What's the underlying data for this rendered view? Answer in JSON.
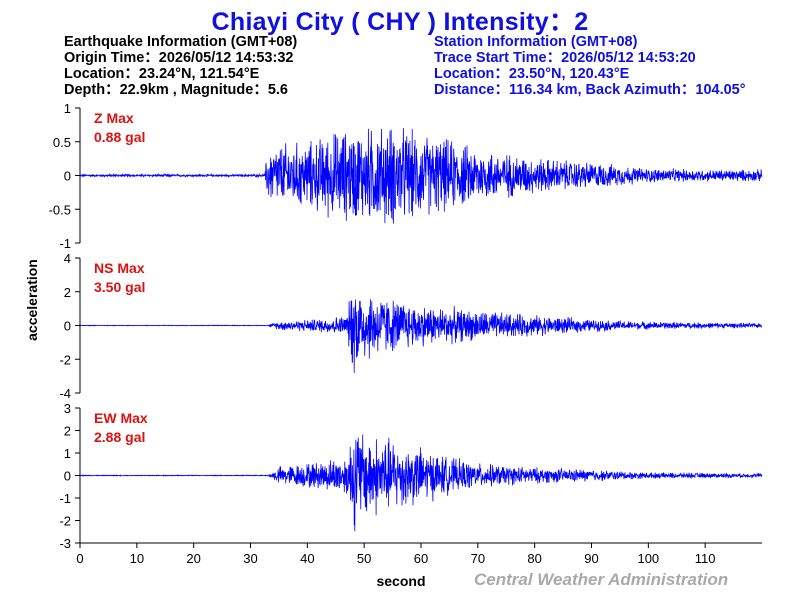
{
  "title": "Chiayi City  ( CHY )  Intensity：2",
  "earthquake": {
    "header": "Earthquake Information  (GMT+08)",
    "origin": "Origin Time：2026/05/12 14:53:32",
    "location": "Location：23.24°N, 121.54°E",
    "depth": "Depth：22.9km , Magnitude：5.6"
  },
  "station": {
    "header": "Station Information  (GMT+08)",
    "trace_start": "Trace Start Time：2026/05/12 14:53:20",
    "location": "Location：23.50°N, 120.43°E",
    "distance": "Distance：116.34 km, Back Azimuth：104.05°"
  },
  "footer": "Central Weather Administration",
  "colors": {
    "title": "#1010e0",
    "trace": "#0000ff",
    "max_label": "#dd1111",
    "footer": "#a9a9a9"
  },
  "chart_data": {
    "type": "line",
    "xlabel": "second",
    "ylabel": "acceleration",
    "xlim": [
      0,
      120
    ],
    "xticks": [
      0,
      10,
      20,
      30,
      40,
      50,
      60,
      70,
      80,
      90,
      100,
      110
    ],
    "grid": false,
    "series": [
      {
        "name": "Z",
        "max_label": "Z Max",
        "max_value": "0.88 gal",
        "ylim": [
          -1,
          1
        ],
        "yticks": [
          -1,
          -0.5,
          0,
          0.5,
          1
        ],
        "envelope": [
          [
            0,
            0.02
          ],
          [
            32.5,
            0.02
          ],
          [
            33,
            0.45
          ],
          [
            36,
            0.55
          ],
          [
            40,
            0.55
          ],
          [
            45,
            0.75
          ],
          [
            50,
            0.8
          ],
          [
            55,
            0.85
          ],
          [
            60,
            0.7
          ],
          [
            65,
            0.6
          ],
          [
            70,
            0.45
          ],
          [
            80,
            0.3
          ],
          [
            90,
            0.22
          ],
          [
            100,
            0.12
          ],
          [
            110,
            0.1
          ],
          [
            120,
            0.1
          ]
        ]
      },
      {
        "name": "NS",
        "max_label": "NS Max",
        "max_value": "3.50 gal",
        "ylim": [
          -4,
          4
        ],
        "yticks": [
          -4,
          -2,
          0,
          2,
          4
        ],
        "envelope": [
          [
            0,
            0.02
          ],
          [
            33,
            0.02
          ],
          [
            35,
            0.3
          ],
          [
            42,
            0.45
          ],
          [
            47,
            0.7
          ],
          [
            48,
            3.3
          ],
          [
            50,
            2.5
          ],
          [
            55,
            1.8
          ],
          [
            60,
            1.4
          ],
          [
            70,
            1.0
          ],
          [
            80,
            0.7
          ],
          [
            90,
            0.4
          ],
          [
            100,
            0.25
          ],
          [
            120,
            0.15
          ]
        ]
      },
      {
        "name": "EW",
        "max_label": "EW Max",
        "max_value": "2.88 gal",
        "ylim": [
          -3,
          3
        ],
        "yticks": [
          -3,
          -2,
          -1,
          0,
          1,
          2,
          3
        ],
        "envelope": [
          [
            0,
            0.02
          ],
          [
            33,
            0.02
          ],
          [
            35,
            0.45
          ],
          [
            42,
            0.7
          ],
          [
            47,
            1.0
          ],
          [
            48,
            2.8
          ],
          [
            50,
            2.2
          ],
          [
            55,
            1.8
          ],
          [
            60,
            1.4
          ],
          [
            65,
            0.9
          ],
          [
            70,
            0.6
          ],
          [
            80,
            0.4
          ],
          [
            90,
            0.3
          ],
          [
            100,
            0.15
          ],
          [
            120,
            0.1
          ]
        ]
      }
    ]
  }
}
